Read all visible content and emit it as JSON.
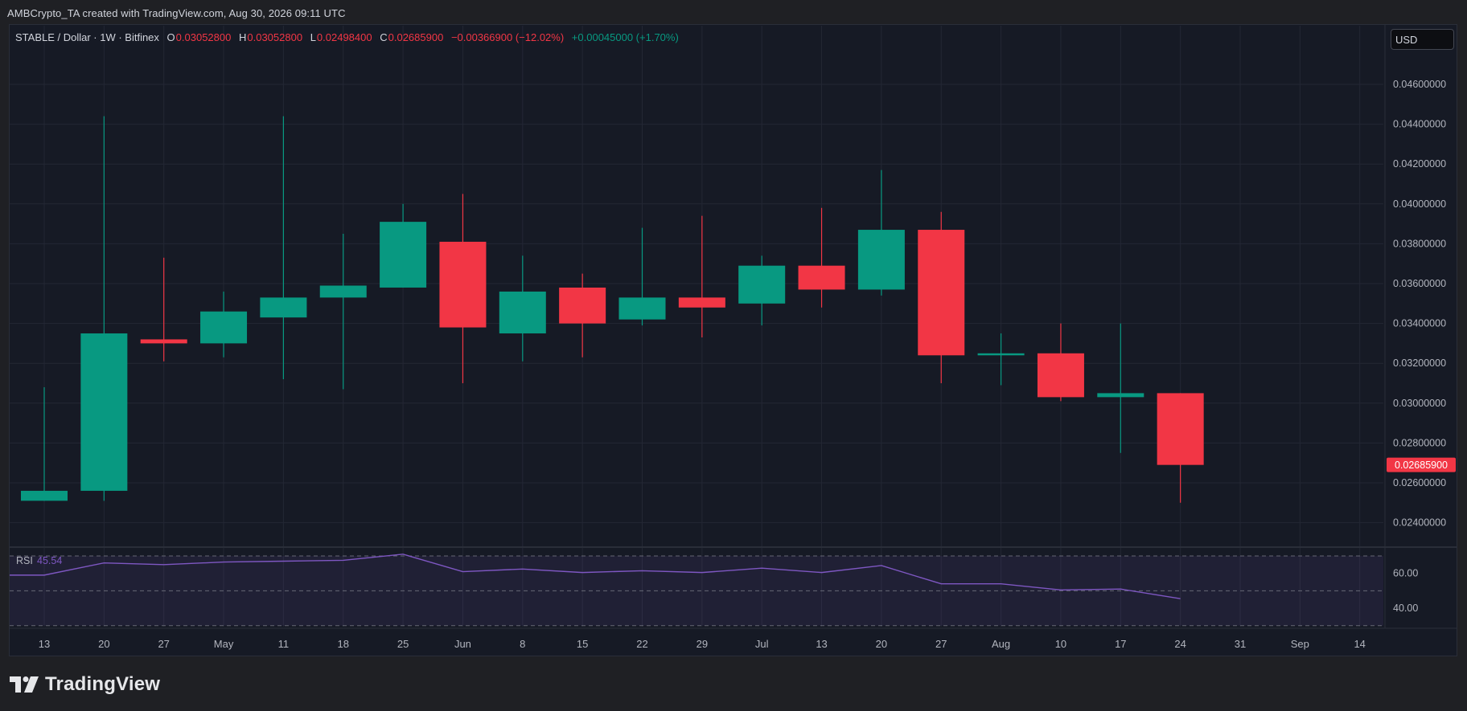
{
  "header": {
    "credit": "AMBCrypto_TA created with TradingView.com, Aug 30, 2026 09:11 UTC"
  },
  "legend": {
    "symbol": "STABLE / Dollar · 1W · Bitfinex",
    "o_label": "O",
    "o_value": "0.03052800",
    "h_label": "H",
    "h_value": "0.03052800",
    "l_label": "L",
    "l_value": "0.02498400",
    "c_label": "C",
    "c_value": "0.02685900",
    "change": "−0.00366900 (−12.02%)",
    "extra": "+0.00045000 (+1.70%)"
  },
  "currency_button": "USD",
  "footer": {
    "brand": "TradingView"
  },
  "colors": {
    "up": "#089981",
    "down": "#f23645",
    "rsi_line": "#7e57c2",
    "background": "#161a25",
    "grid": "#232734",
    "text": "#d1d4dc"
  },
  "chart_data": [
    {
      "type": "candlestick",
      "title": "STABLE / Dollar · 1W · Bitfinex",
      "x_tick_labels": [
        "13",
        "20",
        "27",
        "May",
        "11",
        "18",
        "25",
        "Jun",
        "8",
        "15",
        "22",
        "29",
        "Jul",
        "13",
        "20",
        "27",
        "Aug",
        "10",
        "17",
        "24",
        "31",
        "Sep",
        "14"
      ],
      "y_tick_labels": [
        "0.04600000",
        "0.04400000",
        "0.04200000",
        "0.04000000",
        "0.03800000",
        "0.03600000",
        "0.03400000",
        "0.03200000",
        "0.03000000",
        "0.02800000",
        "0.02600000",
        "0.02400000"
      ],
      "ylim": [
        0.0233,
        0.0482
      ],
      "grid": true,
      "last_price_label": "0.02685900",
      "candles": [
        {
          "x": "Apr 13",
          "open": 0.0251,
          "high": 0.0308,
          "low": 0.0251,
          "close": 0.0256
        },
        {
          "x": "Apr 20",
          "open": 0.0256,
          "high": 0.0444,
          "low": 0.0251,
          "close": 0.0335
        },
        {
          "x": "Apr 27",
          "open": 0.0332,
          "high": 0.0373,
          "low": 0.0321,
          "close": 0.033
        },
        {
          "x": "May 4",
          "open": 0.033,
          "high": 0.0356,
          "low": 0.0323,
          "close": 0.0346
        },
        {
          "x": "May 11",
          "open": 0.0343,
          "high": 0.0444,
          "low": 0.0312,
          "close": 0.0353
        },
        {
          "x": "May 18",
          "open": 0.0353,
          "high": 0.0385,
          "low": 0.0307,
          "close": 0.0359
        },
        {
          "x": "May 25",
          "open": 0.0358,
          "high": 0.04,
          "low": 0.0358,
          "close": 0.0391
        },
        {
          "x": "Jun 1",
          "open": 0.0381,
          "high": 0.0405,
          "low": 0.031,
          "close": 0.0338
        },
        {
          "x": "Jun 8",
          "open": 0.0335,
          "high": 0.0374,
          "low": 0.0321,
          "close": 0.0356
        },
        {
          "x": "Jun 15",
          "open": 0.0358,
          "high": 0.0365,
          "low": 0.0323,
          "close": 0.034
        },
        {
          "x": "Jun 22",
          "open": 0.0342,
          "high": 0.0388,
          "low": 0.0339,
          "close": 0.0353
        },
        {
          "x": "Jun 29",
          "open": 0.0353,
          "high": 0.0394,
          "low": 0.0333,
          "close": 0.0348
        },
        {
          "x": "Jul 6",
          "open": 0.035,
          "high": 0.0374,
          "low": 0.0339,
          "close": 0.0369
        },
        {
          "x": "Jul 13",
          "open": 0.0369,
          "high": 0.0398,
          "low": 0.0348,
          "close": 0.0357
        },
        {
          "x": "Jul 20",
          "open": 0.0357,
          "high": 0.0417,
          "low": 0.0354,
          "close": 0.0387
        },
        {
          "x": "Jul 27",
          "open": 0.0387,
          "high": 0.0396,
          "low": 0.031,
          "close": 0.0324
        },
        {
          "x": "Aug 3",
          "open": 0.0324,
          "high": 0.0335,
          "low": 0.0309,
          "close": 0.0325
        },
        {
          "x": "Aug 10",
          "open": 0.0325,
          "high": 0.034,
          "low": 0.0301,
          "close": 0.0303
        },
        {
          "x": "Aug 17",
          "open": 0.0303,
          "high": 0.034,
          "low": 0.0275,
          "close": 0.0305
        },
        {
          "x": "Aug 24",
          "open": 0.0305,
          "high": 0.0305,
          "low": 0.025,
          "close": 0.0269
        }
      ]
    },
    {
      "type": "line",
      "title": "RSI",
      "current_value": "45.54",
      "y_tick_labels": [
        "60.00",
        "40.00"
      ],
      "band": [
        30,
        70
      ],
      "midline": 50,
      "ylim": [
        28,
        72
      ],
      "series": [
        {
          "name": "RSI",
          "x": [
            "Apr 13",
            "Apr 20",
            "Apr 27",
            "May 4",
            "May 11",
            "May 18",
            "May 25",
            "Jun 1",
            "Jun 8",
            "Jun 15",
            "Jun 22",
            "Jun 29",
            "Jul 6",
            "Jul 13",
            "Jul 20",
            "Jul 27",
            "Aug 3",
            "Aug 10",
            "Aug 17",
            "Aug 24"
          ],
          "values": [
            59,
            66,
            65,
            66.5,
            67,
            67.5,
            71,
            61,
            62.5,
            60.5,
            61.5,
            60.5,
            63,
            60.5,
            64.5,
            54,
            54,
            50.5,
            51,
            45.5
          ]
        }
      ]
    }
  ]
}
